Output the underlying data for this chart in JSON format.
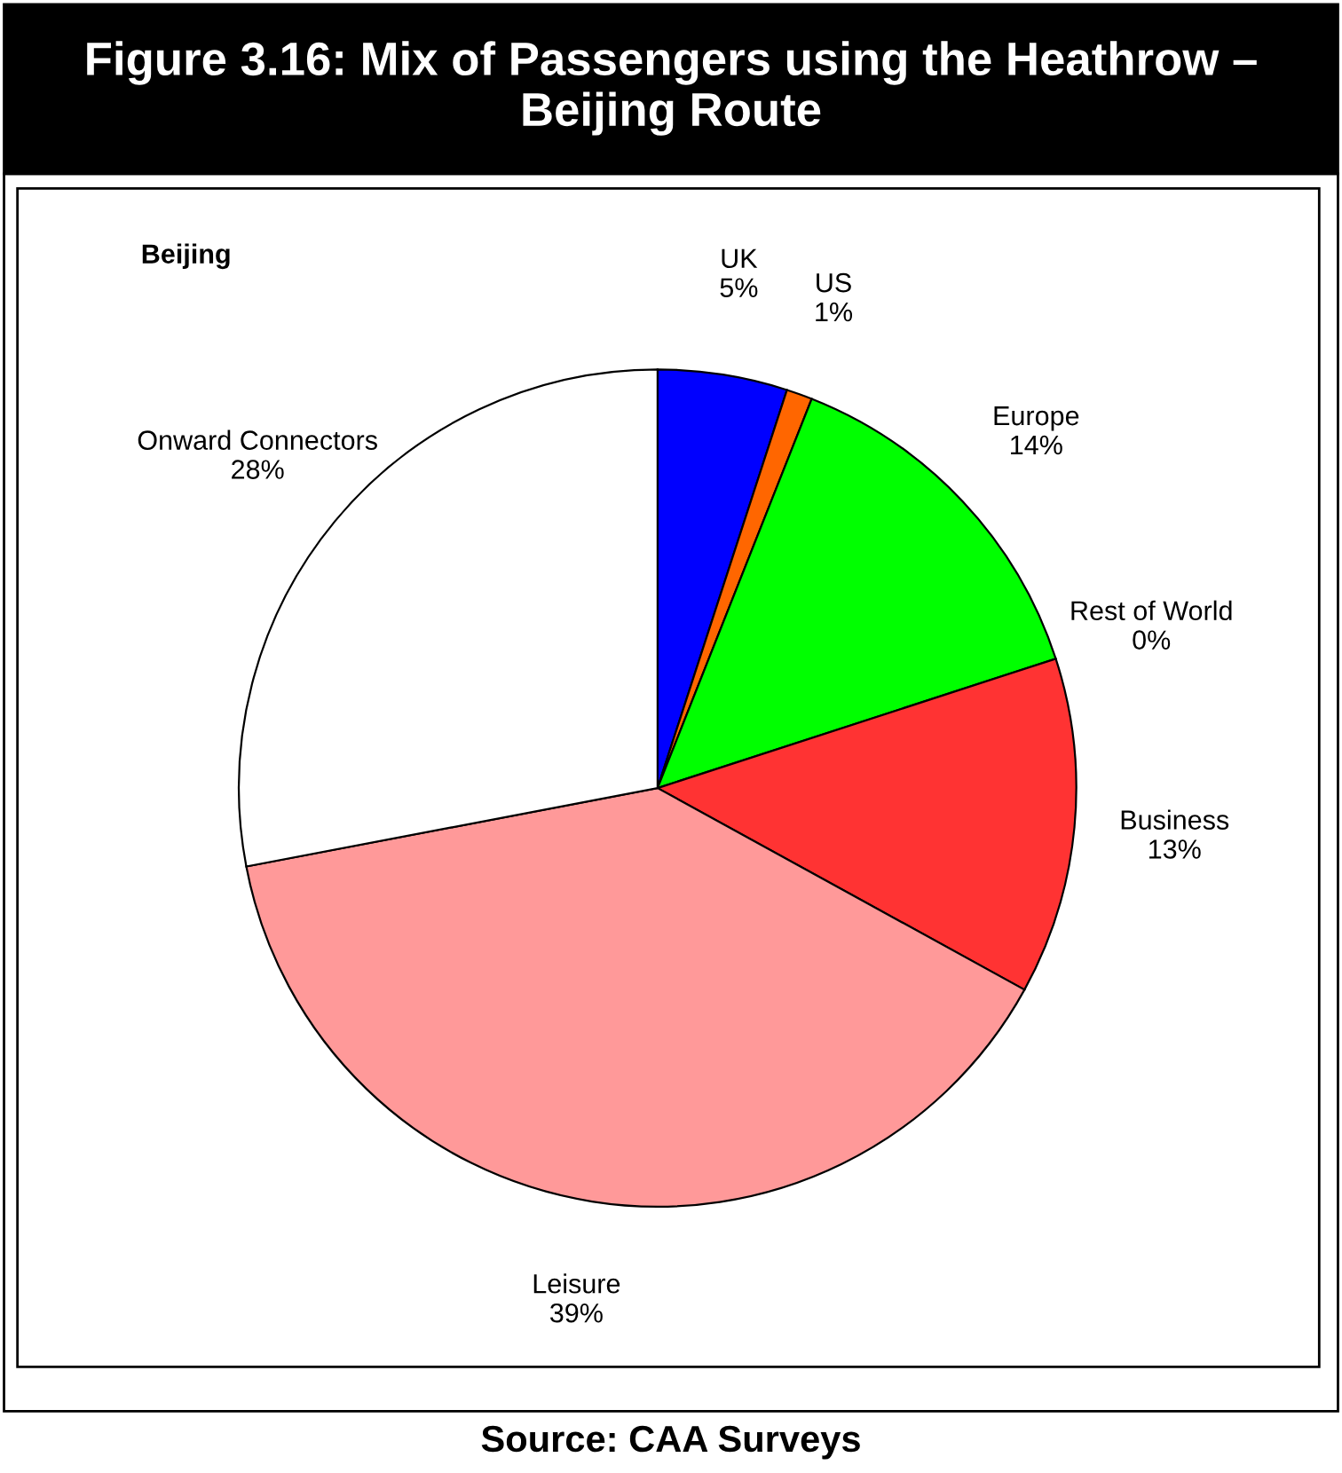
{
  "chart_data": {
    "type": "pie",
    "title": "Figure 3.16: Mix of Passengers using the Heathrow – Beijing Route",
    "subtitle": "Beijing",
    "categories": [
      "UK",
      "US",
      "Europe",
      "Rest of World",
      "Business",
      "Leisure",
      "Onward Connectors"
    ],
    "values": [
      5,
      1,
      14,
      0,
      13,
      39,
      28
    ],
    "value_labels": [
      "5%",
      "1%",
      "14%",
      "0%",
      "13%",
      "39%",
      "28%"
    ],
    "colors": [
      "#0000ff",
      "#ff6600",
      "#00ff00",
      "#cc00cc",
      "#ff3333",
      "#ff9999",
      "#ffffff"
    ],
    "annotations": [
      "Source: CAA Surveys"
    ]
  }
}
